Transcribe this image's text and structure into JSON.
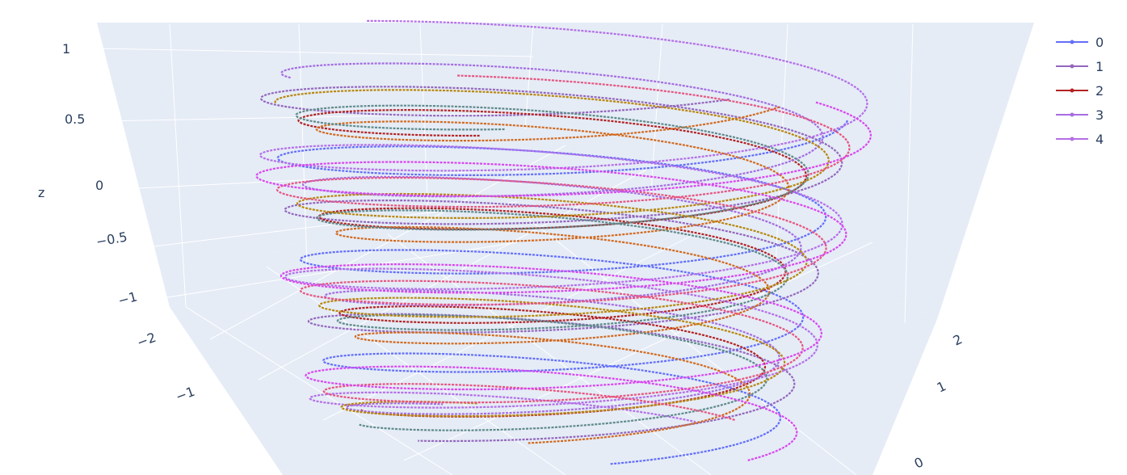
{
  "chart_data": {
    "type": "scatter3d-lines+markers",
    "title": "",
    "z_axis": {
      "label": "z",
      "tick_labels": [
        "1",
        "0.5",
        "0",
        "−0.5",
        "−1"
      ],
      "range": [
        -1.2,
        1.2
      ]
    },
    "x_axis": {
      "label": "",
      "tick_labels": [
        "−2",
        "−1"
      ]
    },
    "y_axis": {
      "label": "",
      "tick_labels": [
        "2",
        "1",
        "0"
      ]
    },
    "grid": true,
    "legend_position": "top-right",
    "series": [
      {
        "name": "0",
        "color": "#636efa",
        "radius": 2.1,
        "z_start": 0.8,
        "z_end": -1.2,
        "phase": 0.2
      },
      {
        "name": "1",
        "color": "#9467bd",
        "radius": 2.2,
        "z_start": 1.1,
        "z_end": -1.1,
        "phase": 1.1
      },
      {
        "name": "2",
        "color": "#b22222",
        "radius": 1.9,
        "z_start": 0.85,
        "z_end": -1.05,
        "phase": 2.0
      },
      {
        "name": "3",
        "color": "#a56de2",
        "radius": 2.0,
        "z_start": 1.05,
        "z_end": -1.15,
        "phase": 3.0
      },
      {
        "name": "4",
        "color": "#b46fe8",
        "radius": 2.3,
        "z_start": 1.15,
        "z_end": -1.25,
        "phase": 4.2
      }
    ],
    "extra_trace_colors": [
      "#d2691e",
      "#5f8a8b",
      "#b8860b",
      "#e75480",
      "#d946ef"
    ]
  }
}
